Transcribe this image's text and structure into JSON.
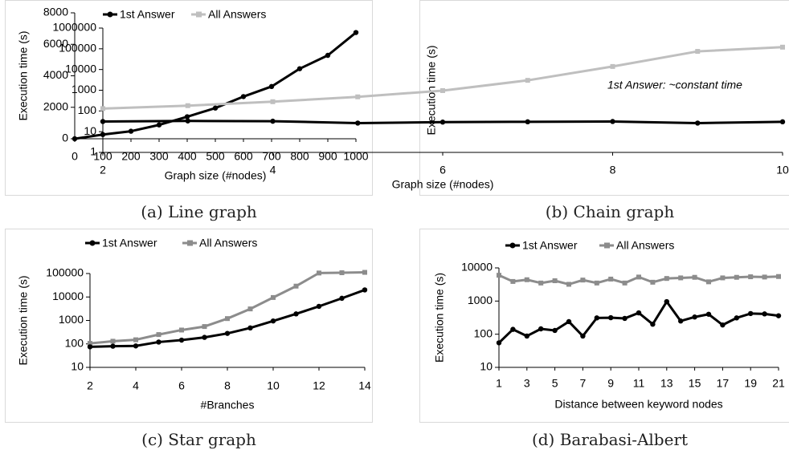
{
  "chart_data": [
    {
      "type": "line",
      "caption": "(a) Line graph",
      "xlabel": "Graph size (#nodes)",
      "ylabel": "Execution time (s)",
      "x": [
        0,
        100,
        200,
        300,
        400,
        500,
        600,
        700,
        800,
        900,
        1000
      ],
      "xticks": [
        0,
        100,
        200,
        300,
        400,
        500,
        600,
        700,
        800,
        900,
        1000
      ],
      "ylim": [
        0,
        8000
      ],
      "yticks": [
        0,
        2000,
        4000,
        6000,
        8000
      ],
      "yscale": "linear",
      "series": [
        {
          "values": [
            0,
            270,
            480,
            880,
            1400,
            1950,
            2680,
            3320,
            4450,
            5300,
            6750
          ],
          "color": "#000000"
        }
      ]
    },
    {
      "type": "line",
      "caption": "(b) Chain graph",
      "xlabel": "Graph size (#nodes)",
      "ylabel": "Execution time (s)",
      "x": [
        2,
        3,
        4,
        5,
        6,
        7,
        8,
        9,
        10
      ],
      "xticks": [
        2,
        4,
        6,
        8,
        10
      ],
      "ylim": [
        1,
        1000000
      ],
      "yticks": [
        1,
        10,
        100,
        1000,
        10000,
        100000,
        1000000
      ],
      "yscale": "log",
      "legend": "top",
      "annotation": "1st Answer: ~constant time",
      "series": [
        {
          "name": "1st Answer",
          "values": [
            31,
            33,
            32,
            26,
            29,
            30,
            31,
            26,
            30
          ],
          "color": "#000000"
        },
        {
          "name": "All Answers",
          "values": [
            130,
            180,
            280,
            480,
            960,
            3000,
            14000,
            75000,
            120000
          ],
          "color": "#bfbfbf"
        }
      ]
    },
    {
      "type": "line",
      "caption": "(c) Star graph",
      "xlabel": "#Branches",
      "ylabel": "Execution time (s)",
      "x": [
        2,
        3,
        4,
        5,
        6,
        7,
        8,
        9,
        10,
        11,
        12,
        13,
        14
      ],
      "xticks": [
        2,
        4,
        6,
        8,
        10,
        12,
        14
      ],
      "ylim": [
        10,
        100000
      ],
      "yticks": [
        10,
        100,
        1000,
        10000,
        100000
      ],
      "yscale": "log",
      "legend": "top",
      "series": [
        {
          "name": "1st Answer",
          "values": [
            75,
            80,
            82,
            120,
            145,
            190,
            280,
            480,
            950,
            1900,
            4000,
            8800,
            20000
          ],
          "color": "#000000"
        },
        {
          "name": "All Answers",
          "values": [
            105,
            130,
            150,
            250,
            390,
            550,
            1200,
            3100,
            9500,
            29000,
            105000,
            108000,
            112000
          ],
          "color": "#8c8c8c"
        }
      ]
    },
    {
      "type": "line",
      "caption": "(d) Barabasi-Albert",
      "xlabel": "Distance between keyword nodes",
      "ylabel": "Execution time (s)",
      "x": [
        1,
        2,
        3,
        4,
        5,
        6,
        7,
        8,
        9,
        10,
        11,
        12,
        13,
        14,
        15,
        16,
        17,
        18,
        19,
        20,
        21
      ],
      "xticks": [
        1,
        3,
        5,
        7,
        9,
        11,
        13,
        15,
        17,
        19,
        21
      ],
      "ylim": [
        10,
        10000
      ],
      "yticks": [
        10,
        100,
        1000,
        10000
      ],
      "yscale": "log",
      "legend": "top",
      "series": [
        {
          "name": "1st Answer",
          "values": [
            55,
            140,
            88,
            145,
            130,
            240,
            88,
            310,
            315,
            300,
            440,
            200,
            960,
            250,
            330,
            400,
            190,
            310,
            420,
            410,
            360
          ],
          "color": "#000000"
        },
        {
          "name": "All Answers",
          "values": [
            6000,
            3900,
            4400,
            3500,
            4100,
            3200,
            4300,
            3500,
            4600,
            3500,
            5300,
            3700,
            4800,
            5000,
            5200,
            3800,
            5000,
            5200,
            5400,
            5300,
            5500
          ],
          "color": "#8c8c8c"
        }
      ]
    }
  ]
}
